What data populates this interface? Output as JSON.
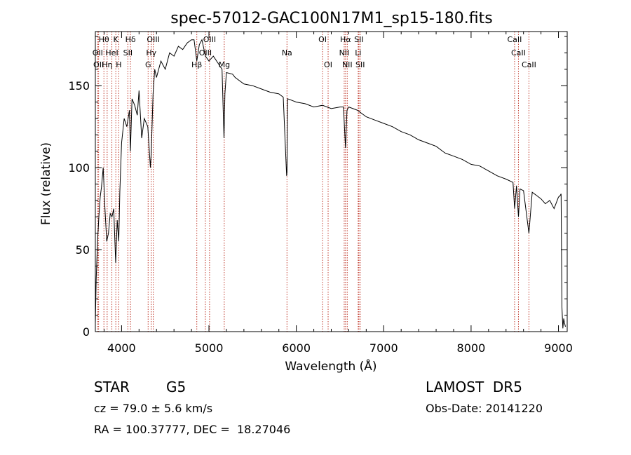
{
  "chart_data": {
    "type": "line",
    "title": "spec-57012-GAC100N17M1_sp15-180.fits",
    "xlabel": "Wavelength (Å)",
    "ylabel": "Flux (relative)",
    "xlim": [
      3700,
      9100
    ],
    "ylim": [
      0,
      183
    ],
    "x_ticks": [
      4000,
      5000,
      6000,
      7000,
      8000,
      9000
    ],
    "y_ticks": [
      0,
      50,
      100,
      150
    ],
    "grid": false,
    "series": [
      {
        "line_color": "#000000",
        "x": [
          3700,
          3710,
          3725,
          3740,
          3755,
          3770,
          3790,
          3810,
          3830,
          3850,
          3870,
          3890,
          3910,
          3933,
          3950,
          3968,
          3980,
          4000,
          4030,
          4060,
          4090,
          4101,
          4120,
          4150,
          4180,
          4200,
          4230,
          4260,
          4300,
          4330,
          4340,
          4360,
          4380,
          4400,
          4450,
          4500,
          4550,
          4600,
          4650,
          4700,
          4750,
          4800,
          4830,
          4861,
          4890,
          4920,
          4960,
          5000,
          5050,
          5100,
          5150,
          5172,
          5183,
          5200,
          5270,
          5300,
          5400,
          5500,
          5600,
          5700,
          5800,
          5850,
          5889,
          5893,
          5900,
          5950,
          6000,
          6100,
          6200,
          6300,
          6400,
          6500,
          6540,
          6563,
          6580,
          6600,
          6700,
          6800,
          6900,
          7000,
          7100,
          7200,
          7300,
          7400,
          7500,
          7600,
          7700,
          7800,
          7900,
          8000,
          8100,
          8200,
          8300,
          8400,
          8480,
          8498,
          8520,
          8542,
          8560,
          8600,
          8662,
          8700,
          8750,
          8800,
          8850,
          8900,
          8950,
          9000,
          9020,
          9030,
          9040,
          9050,
          9060,
          9070,
          9080
        ],
        "values": [
          5,
          32,
          55,
          70,
          82,
          88,
          100,
          75,
          55,
          60,
          72,
          70,
          75,
          42,
          68,
          55,
          85,
          115,
          130,
          125,
          135,
          110,
          142,
          138,
          132,
          147,
          118,
          130,
          125,
          100,
          110,
          145,
          160,
          155,
          165,
          160,
          170,
          168,
          174,
          172,
          176,
          178,
          178,
          165,
          175,
          178,
          168,
          165,
          168,
          164,
          160,
          118,
          145,
          158,
          157,
          155,
          151,
          150,
          148,
          146,
          145,
          143,
          95,
          97,
          142,
          141,
          140,
          139,
          137,
          138,
          136,
          137,
          137,
          112,
          135,
          137,
          135,
          131,
          129,
          127,
          125,
          122,
          120,
          117,
          115,
          113,
          109,
          107,
          105,
          102,
          101,
          98,
          95,
          93,
          91,
          75,
          89,
          70,
          87,
          86,
          60,
          85,
          83,
          81,
          78,
          80,
          75,
          82,
          83,
          84,
          15,
          2,
          8,
          5,
          3
        ]
      }
    ],
    "reference_lines": [
      {
        "label": "Hθ",
        "x": 3798,
        "row": 0
      },
      {
        "label": "K",
        "x": 3934,
        "row": 0
      },
      {
        "label": "Hδ",
        "x": 4102,
        "row": 0
      },
      {
        "label": "OIII",
        "x": 4363,
        "row": 0
      },
      {
        "label": "OIII",
        "x": 5007,
        "row": 0
      },
      {
        "label": "OI",
        "x": 6300,
        "row": 0
      },
      {
        "label": "Hα",
        "x": 6563,
        "row": 0
      },
      {
        "label": "SII",
        "x": 6716,
        "row": 0
      },
      {
        "label": "CaII",
        "x": 8498,
        "row": 0
      },
      {
        "label": "OII",
        "x": 3727,
        "row": 1
      },
      {
        "label": "HeI",
        "x": 3889,
        "row": 1
      },
      {
        "label": "SII",
        "x": 4072,
        "row": 1
      },
      {
        "label": "Hγ",
        "x": 4340,
        "row": 1
      },
      {
        "label": "OIII",
        "x": 4959,
        "row": 1
      },
      {
        "label": "Na",
        "x": 5893,
        "row": 1
      },
      {
        "label": "NII",
        "x": 6548,
        "row": 1
      },
      {
        "label": "Li",
        "x": 6708,
        "row": 1
      },
      {
        "label": "CaII",
        "x": 8542,
        "row": 1
      },
      {
        "label": "OII",
        "x": 3737,
        "row": 2
      },
      {
        "label": "Hη",
        "x": 3835,
        "row": 2
      },
      {
        "label": "H",
        "x": 3968,
        "row": 2
      },
      {
        "label": "G",
        "x": 4304,
        "row": 2
      },
      {
        "label": "Hβ",
        "x": 4861,
        "row": 2
      },
      {
        "label": "Mg",
        "x": 5175,
        "row": 2
      },
      {
        "label": "OI",
        "x": 6364,
        "row": 2
      },
      {
        "label": "NII",
        "x": 6583,
        "row": 2
      },
      {
        "label": "SII",
        "x": 6731,
        "row": 2
      },
      {
        "label": "CaII",
        "x": 8662,
        "row": 2
      }
    ]
  },
  "info": {
    "class_label": "STAR",
    "subclass": "G5",
    "survey": "LAMOST  DR5",
    "redshift": "cz = 79.0 ± 5.6 km/s",
    "obs_date": "Obs-Date: 20141220",
    "coords": "RA = 100.37777, DEC =  18.27046"
  }
}
